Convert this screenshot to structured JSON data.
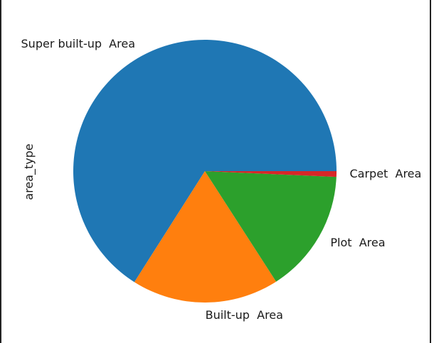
{
  "chart_data": {
    "type": "pie",
    "ylabel": "area_type",
    "labels": [
      "Super built-up  Area",
      "Built-up  Area",
      "Plot  Area",
      "Carpet  Area"
    ],
    "values": [
      66.0,
      18.1,
      15.2,
      0.7
    ],
    "colors": [
      "#1f77b4",
      "#ff7f0e",
      "#2ca02c",
      "#d62728"
    ],
    "start_angle_deg": 0,
    "direction": "counterclockwise"
  }
}
